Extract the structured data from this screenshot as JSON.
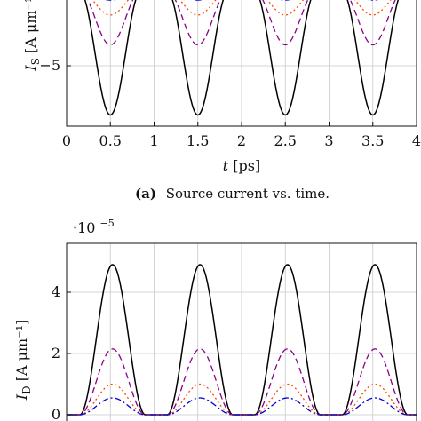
{
  "chart_data": [
    {
      "type": "line",
      "panel": "a",
      "caption_tag": "(a)",
      "caption": "Source current vs. time.",
      "ylabel": "I_S [A μm⁻¹]",
      "xlabel": "t [ps]",
      "xlim": [
        0,
        4
      ],
      "xticks": [
        0,
        0.5,
        1,
        1.5,
        2,
        2.5,
        3,
        3.5,
        4
      ],
      "yticks": [
        -5
      ],
      "grid": true,
      "series": [
        {
          "style": "solid",
          "color": "#000000",
          "period": 1,
          "phase": 0.15,
          "width": 0.7,
          "baseline": 0,
          "amplitude": -8.3
        },
        {
          "style": "dashed",
          "color": "#8b008b",
          "period": 1,
          "phase": 0.15,
          "width": 0.7,
          "baseline": 0,
          "amplitude": -3.6
        },
        {
          "style": "dotted",
          "color": "#ff4500",
          "period": 1,
          "phase": 0.15,
          "width": 0.7,
          "baseline": 0,
          "amplitude": -1.6
        },
        {
          "style": "dashdot",
          "color": "#0000cd",
          "period": 1,
          "phase": 0.15,
          "width": 0.7,
          "baseline": 0,
          "amplitude": -0.6
        }
      ]
    },
    {
      "type": "line",
      "panel": "b",
      "multiplier": "·10",
      "multiplier_exp": "−5",
      "ylabel": "I_D [A μm⁻¹]",
      "ylim": [
        0,
        5.2
      ],
      "yticks": [
        0,
        2,
        4
      ],
      "grid": true,
      "series": [
        {
          "style": "solid",
          "color": "#000000",
          "period": 1,
          "phase": 0.15,
          "width": 0.75,
          "baseline": 0,
          "amplitude": 4.9
        },
        {
          "style": "dashed",
          "color": "#8b008b",
          "period": 1,
          "phase": 0.15,
          "width": 0.75,
          "baseline": 0,
          "amplitude": 2.15
        },
        {
          "style": "dotted",
          "color": "#ff4500",
          "period": 1,
          "phase": 0.15,
          "width": 0.75,
          "baseline": 0,
          "amplitude": 1.0
        },
        {
          "style": "dashdot",
          "color": "#0000cd",
          "period": 1,
          "phase": 0.15,
          "width": 0.75,
          "baseline": 0,
          "amplitude": 0.55
        }
      ]
    }
  ]
}
